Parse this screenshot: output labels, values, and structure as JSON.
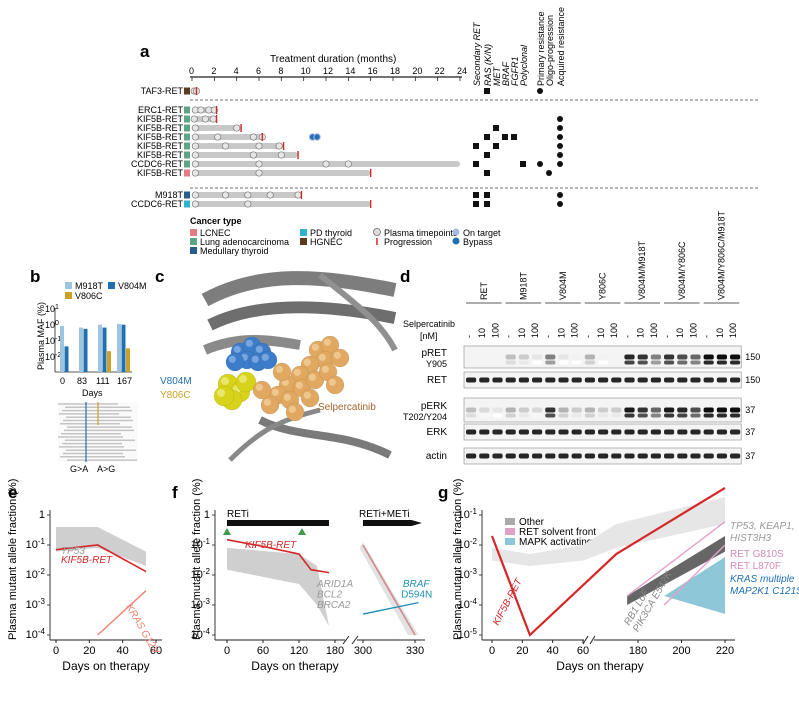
{
  "panel_labels": {
    "a": "a",
    "b": "b",
    "c": "c",
    "d": "d",
    "e": "e",
    "f": "f",
    "g": "g"
  },
  "panel_a": {
    "axis_title": "Treatment duration (months)",
    "ticks": [
      "0",
      "2",
      "4",
      "6",
      "8",
      "10",
      "12",
      "14",
      "16",
      "18",
      "20",
      "22",
      "24"
    ],
    "col_headers": [
      "Secondary RET",
      "RAS (K/N)",
      "MET",
      "BRAF",
      "FGFR1",
      "Polyclonal",
      "Primary resistance",
      "Oligo-progression",
      "Acquired resistance"
    ],
    "rows_group1": [
      {
        "label": "TAF3-RET",
        "months": 0.4
      }
    ],
    "rows_group2": [
      {
        "label": "ERC1-RET",
        "months": 2.2
      },
      {
        "label": "KIF5B-RET",
        "months": 2.2
      },
      {
        "label": "KIF5B-RET",
        "months": 4.4
      },
      {
        "label": "KIF5B-RET",
        "months": 6.3
      },
      {
        "label": "KIF5B-RET",
        "months": 8.2
      },
      {
        "label": "KIF5B-RET",
        "months": 9.5
      },
      {
        "label": "CCDC6-RET",
        "months": 24
      },
      {
        "label": "KIF5B-RET",
        "months": 16
      }
    ],
    "rows_group3": [
      {
        "label": "M918T",
        "months": 9.8
      },
      {
        "label": "CCDC6-RET",
        "months": 16
      }
    ],
    "legend": {
      "title": "Cancer type",
      "items": [
        {
          "label": "LCNEC",
          "color": "#e57b86"
        },
        {
          "label": "Lung adenocarcinoma",
          "color": "#5ea486"
        },
        {
          "label": "Medullary thyroid",
          "color": "#2a5c8a"
        },
        {
          "label": "PD thyroid",
          "color": "#2db4cc"
        },
        {
          "label": "HGNEC",
          "color": "#5a3b1d"
        }
      ],
      "marks": [
        "Plasma timepoints",
        "Progression",
        "On target",
        "Bypass"
      ]
    }
  },
  "panel_b": {
    "ylabel": "Plasma MAF (%)",
    "xlabel": "Days",
    "legend": [
      "M918T",
      "V804M",
      "V806C"
    ],
    "igv_labels": [
      "G>A",
      "A>G"
    ]
  },
  "panel_c": {
    "labels": [
      "V804M",
      "Y806C",
      "Selpercatinib"
    ]
  },
  "panel_d": {
    "cell_lines": [
      "RET",
      "M918T",
      "V804M",
      "Y806C",
      "V804M/M918T",
      "V804M/Y806C",
      "V804M/Y806C/M918T"
    ],
    "conc": [
      "-",
      "10",
      "100"
    ],
    "drug_label": "Selpercatinib",
    "drug_unit": "[nM]",
    "blots": [
      {
        "label": "pRET",
        "sub": "Y905",
        "kda": "150"
      },
      {
        "label": "RET",
        "sub": "",
        "kda": "150"
      },
      {
        "label": "pERK",
        "sub": "T202/Y204",
        "kda": "37"
      },
      {
        "label": "ERK",
        "sub": "",
        "kda": "37"
      },
      {
        "label": "actin",
        "sub": "",
        "kda": "37"
      }
    ]
  },
  "chart_data": [
    {
      "type": "line",
      "title": "e",
      "xlabel": "Days on therapy",
      "ylabel": "Plasma mutant allele fraction (%)",
      "ylim": [
        0.0001,
        1
      ],
      "yscale": "log",
      "xlim": [
        0,
        60
      ],
      "xticks": [
        0,
        20,
        40,
        60
      ],
      "series": [
        {
          "name": "TP53",
          "values": [
            [
              0,
              0.09
            ],
            [
              25,
              0.11
            ],
            [
              54,
              0.025
            ]
          ]
        },
        {
          "name": "KIF5B-RET",
          "values": [
            [
              0,
              0.07
            ],
            [
              25,
              0.1
            ],
            [
              54,
              0.013
            ]
          ]
        },
        {
          "name": "KRAS G12V",
          "values": [
            [
              25,
              0.0001
            ],
            [
              54,
              0.003
            ]
          ]
        }
      ]
    },
    {
      "type": "line",
      "title": "f",
      "xlabel": "Days on therapy",
      "ylabel": "Plasma mutant allele fraction (%)",
      "ylim": [
        0.0001,
        1
      ],
      "yscale": "log",
      "xticks": [
        0,
        60,
        120,
        180,
        300,
        330
      ],
      "annotations": [
        "RETi",
        "RETi+METi"
      ],
      "series": [
        {
          "name": "KIF5B-RET",
          "values": [
            [
              0,
              0.15
            ],
            [
              60,
              0.09
            ],
            [
              120,
              0.05
            ],
            [
              150,
              0.015
            ],
            [
              300,
              0.1
            ],
            [
              330,
              0.0001
            ]
          ]
        },
        {
          "name": "ARID1A",
          "values": [
            [
              0,
              0.05
            ],
            [
              120,
              0.015
            ],
            [
              170,
              0.00025
            ]
          ]
        },
        {
          "name": "BCL2",
          "values": []
        },
        {
          "name": "BRCA2",
          "values": []
        },
        {
          "name": "BRAF D594N",
          "values": [
            [
              300,
              0.0005
            ],
            [
              330,
              0.0012
            ]
          ]
        }
      ]
    },
    {
      "type": "line",
      "title": "g",
      "xlabel": "Days on therapy",
      "ylabel": "Plasma mutant allele fraction (%)",
      "ylim": [
        1e-05,
        1
      ],
      "yscale": "log",
      "xticks": [
        0,
        20,
        40,
        60,
        180,
        200,
        220
      ],
      "legend": [
        "Other",
        "RET solvent front",
        "MAPK activating"
      ],
      "series": [
        {
          "name": "KIF5B-RET",
          "values": [
            [
              0,
              0.02
            ],
            [
              25,
              1e-05
            ],
            [
              170,
              0.005
            ],
            [
              220,
              0.8
            ]
          ]
        },
        {
          "name": "TP53, KEAP1, HIST3H3",
          "values": [
            [
              0,
              0.005
            ],
            [
              25,
              0.003
            ],
            [
              220,
              0.3
            ]
          ]
        },
        {
          "name": "RET G810S",
          "values": [
            [
              175,
              0.0001
            ],
            [
              220,
              0.06
            ]
          ]
        },
        {
          "name": "RET L870F",
          "values": [
            [
              190,
              5e-05
            ],
            [
              220,
              0.01
            ]
          ]
        },
        {
          "name": "KRAS multiple MAP2K1 C121S",
          "values": [
            [
              190,
              0.0001
            ],
            [
              220,
              0.001
            ]
          ]
        },
        {
          "name": "RB1 LoF PIK3CA E542K",
          "values": [
            [
              170,
              0.0001
            ],
            [
              220,
              0.005
            ]
          ]
        }
      ]
    }
  ],
  "text": {
    "e_tp53": "TP53",
    "e_kif5b": "KIF5B-RET",
    "e_kras": "KRAS G12V",
    "f_kif5b": "KIF5B-RET",
    "f_arid": "ARID1A",
    "f_bcl2": "BCL2",
    "f_brca2": "BRCA2",
    "f_braf": "BRAF",
    "f_braf2": "D594N",
    "g_other": "Other",
    "g_solvent": "RET solvent front",
    "g_mapk": "MAPK activating",
    "g_tp53": "TP53, KEAP1,",
    "g_hist": "HIST3H3",
    "g_g810s": "RET G810S",
    "g_l870f": "RET L870F",
    "g_kras": "KRAS multiple",
    "g_map2k1": "MAP2K1 C121S",
    "g_kif5b": "KIF5B-RET",
    "g_rb1": "RB1 LoF",
    "g_pik3ca": "PIK3CA E542K"
  }
}
